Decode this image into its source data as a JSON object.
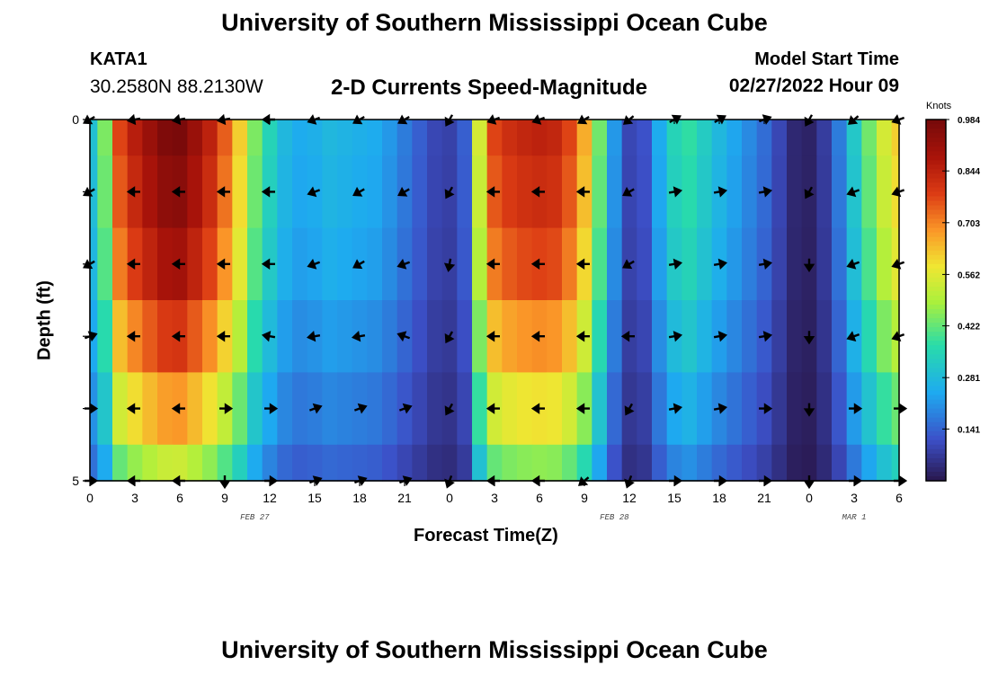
{
  "header": {
    "title": "University of Southern Mississippi Ocean Cube",
    "station": "KATA1",
    "coords": "30.2580N  88.2130W",
    "subtitle": "2-D Currents Speed-Magnitude",
    "model_label": "Model Start Time",
    "model_date": "02/27/2022 Hour 09"
  },
  "footer": {
    "title": "University of Southern Mississippi Ocean Cube"
  },
  "chart_data": {
    "type": "heatmap",
    "title": "2-D Currents Speed-Magnitude",
    "xlabel": "Forecast Time(Z)",
    "ylabel": "Depth (ft)",
    "x_ticks": [
      "0",
      "3",
      "6",
      "9",
      "12",
      "15",
      "18",
      "21",
      "0",
      "3",
      "6",
      "9",
      "12",
      "15",
      "18",
      "21",
      "0",
      "3",
      "6"
    ],
    "x_hours": [
      0,
      3,
      6,
      9,
      12,
      15,
      18,
      21,
      24,
      27,
      30,
      33,
      36,
      39,
      42,
      45,
      48,
      51,
      54
    ],
    "date_labels": [
      {
        "text": "FEB 27",
        "hour": 11
      },
      {
        "text": "FEB 28",
        "hour": 35
      },
      {
        "text": "MAR 1",
        "hour": 51
      }
    ],
    "y_ticks": [
      "0",
      "5"
    ],
    "ylim": [
      0,
      5
    ],
    "xlim": [
      0,
      54
    ],
    "colorbar": {
      "label": "Knots",
      "ticks": [
        "0.984",
        "0.844",
        "0.703",
        "0.562",
        "0.422",
        "0.281",
        "0.141"
      ],
      "range": [
        0,
        0.984
      ]
    },
    "depth_rows": [
      0,
      1,
      2,
      3,
      4,
      5
    ],
    "speed_profile_by_hour": [
      [
        0,
        0.3
      ],
      [
        1,
        0.45
      ],
      [
        2,
        0.78
      ],
      [
        3,
        0.86
      ],
      [
        4,
        0.92
      ],
      [
        5,
        0.97
      ],
      [
        6,
        0.98
      ],
      [
        7,
        0.92
      ],
      [
        8,
        0.85
      ],
      [
        9,
        0.75
      ],
      [
        10,
        0.62
      ],
      [
        11,
        0.45
      ],
      [
        12,
        0.35
      ],
      [
        13,
        0.28
      ],
      [
        14,
        0.25
      ],
      [
        15,
        0.26
      ],
      [
        16,
        0.28
      ],
      [
        17,
        0.27
      ],
      [
        18,
        0.26
      ],
      [
        19,
        0.25
      ],
      [
        20,
        0.22
      ],
      [
        21,
        0.18
      ],
      [
        22,
        0.14
      ],
      [
        23,
        0.1
      ],
      [
        24,
        0.09
      ],
      [
        25,
        0.14
      ],
      [
        26,
        0.55
      ],
      [
        27,
        0.78
      ],
      [
        28,
        0.82
      ],
      [
        29,
        0.84
      ],
      [
        30,
        0.85
      ],
      [
        31,
        0.84
      ],
      [
        32,
        0.78
      ],
      [
        33,
        0.66
      ],
      [
        34,
        0.44
      ],
      [
        35,
        0.22
      ],
      [
        36,
        0.1
      ],
      [
        37,
        0.12
      ],
      [
        38,
        0.25
      ],
      [
        39,
        0.35
      ],
      [
        40,
        0.38
      ],
      [
        41,
        0.33
      ],
      [
        42,
        0.28
      ],
      [
        43,
        0.24
      ],
      [
        44,
        0.2
      ],
      [
        45,
        0.16
      ],
      [
        46,
        0.1
      ],
      [
        47,
        0.04
      ],
      [
        48,
        0.03
      ],
      [
        49,
        0.08
      ],
      [
        50,
        0.18
      ],
      [
        51,
        0.32
      ],
      [
        52,
        0.44
      ],
      [
        53,
        0.55
      ],
      [
        54,
        0.62
      ]
    ],
    "depth_factor": [
      1.0,
      0.97,
      0.92,
      0.82,
      0.7,
      0.55
    ],
    "arrow_hours": [
      0,
      3,
      6,
      9,
      12,
      15,
      18,
      21,
      24,
      27,
      30,
      33,
      36,
      39,
      42,
      45,
      48,
      51,
      54
    ],
    "arrow_dirs_deg": [
      [
        210,
        190,
        190,
        190,
        180,
        200,
        210,
        210,
        240,
        200,
        200,
        210,
        220,
        30,
        30,
        20,
        240,
        220,
        200
      ],
      [
        210,
        180,
        180,
        180,
        180,
        200,
        210,
        210,
        240,
        180,
        180,
        180,
        210,
        10,
        10,
        10,
        240,
        200,
        200
      ],
      [
        210,
        180,
        180,
        180,
        180,
        200,
        210,
        200,
        260,
        180,
        180,
        180,
        210,
        10,
        10,
        10,
        270,
        200,
        200
      ],
      [
        20,
        180,
        180,
        180,
        170,
        190,
        190,
        160,
        240,
        180,
        180,
        180,
        180,
        10,
        10,
        10,
        270,
        200,
        200
      ],
      [
        0,
        180,
        180,
        0,
        0,
        20,
        20,
        20,
        240,
        180,
        180,
        180,
        240,
        10,
        10,
        0,
        270,
        0,
        0
      ],
      [
        0,
        180,
        180,
        270,
        0,
        20,
        20,
        20,
        250,
        180,
        180,
        220,
        250,
        0,
        0,
        0,
        270,
        0,
        0
      ]
    ]
  }
}
